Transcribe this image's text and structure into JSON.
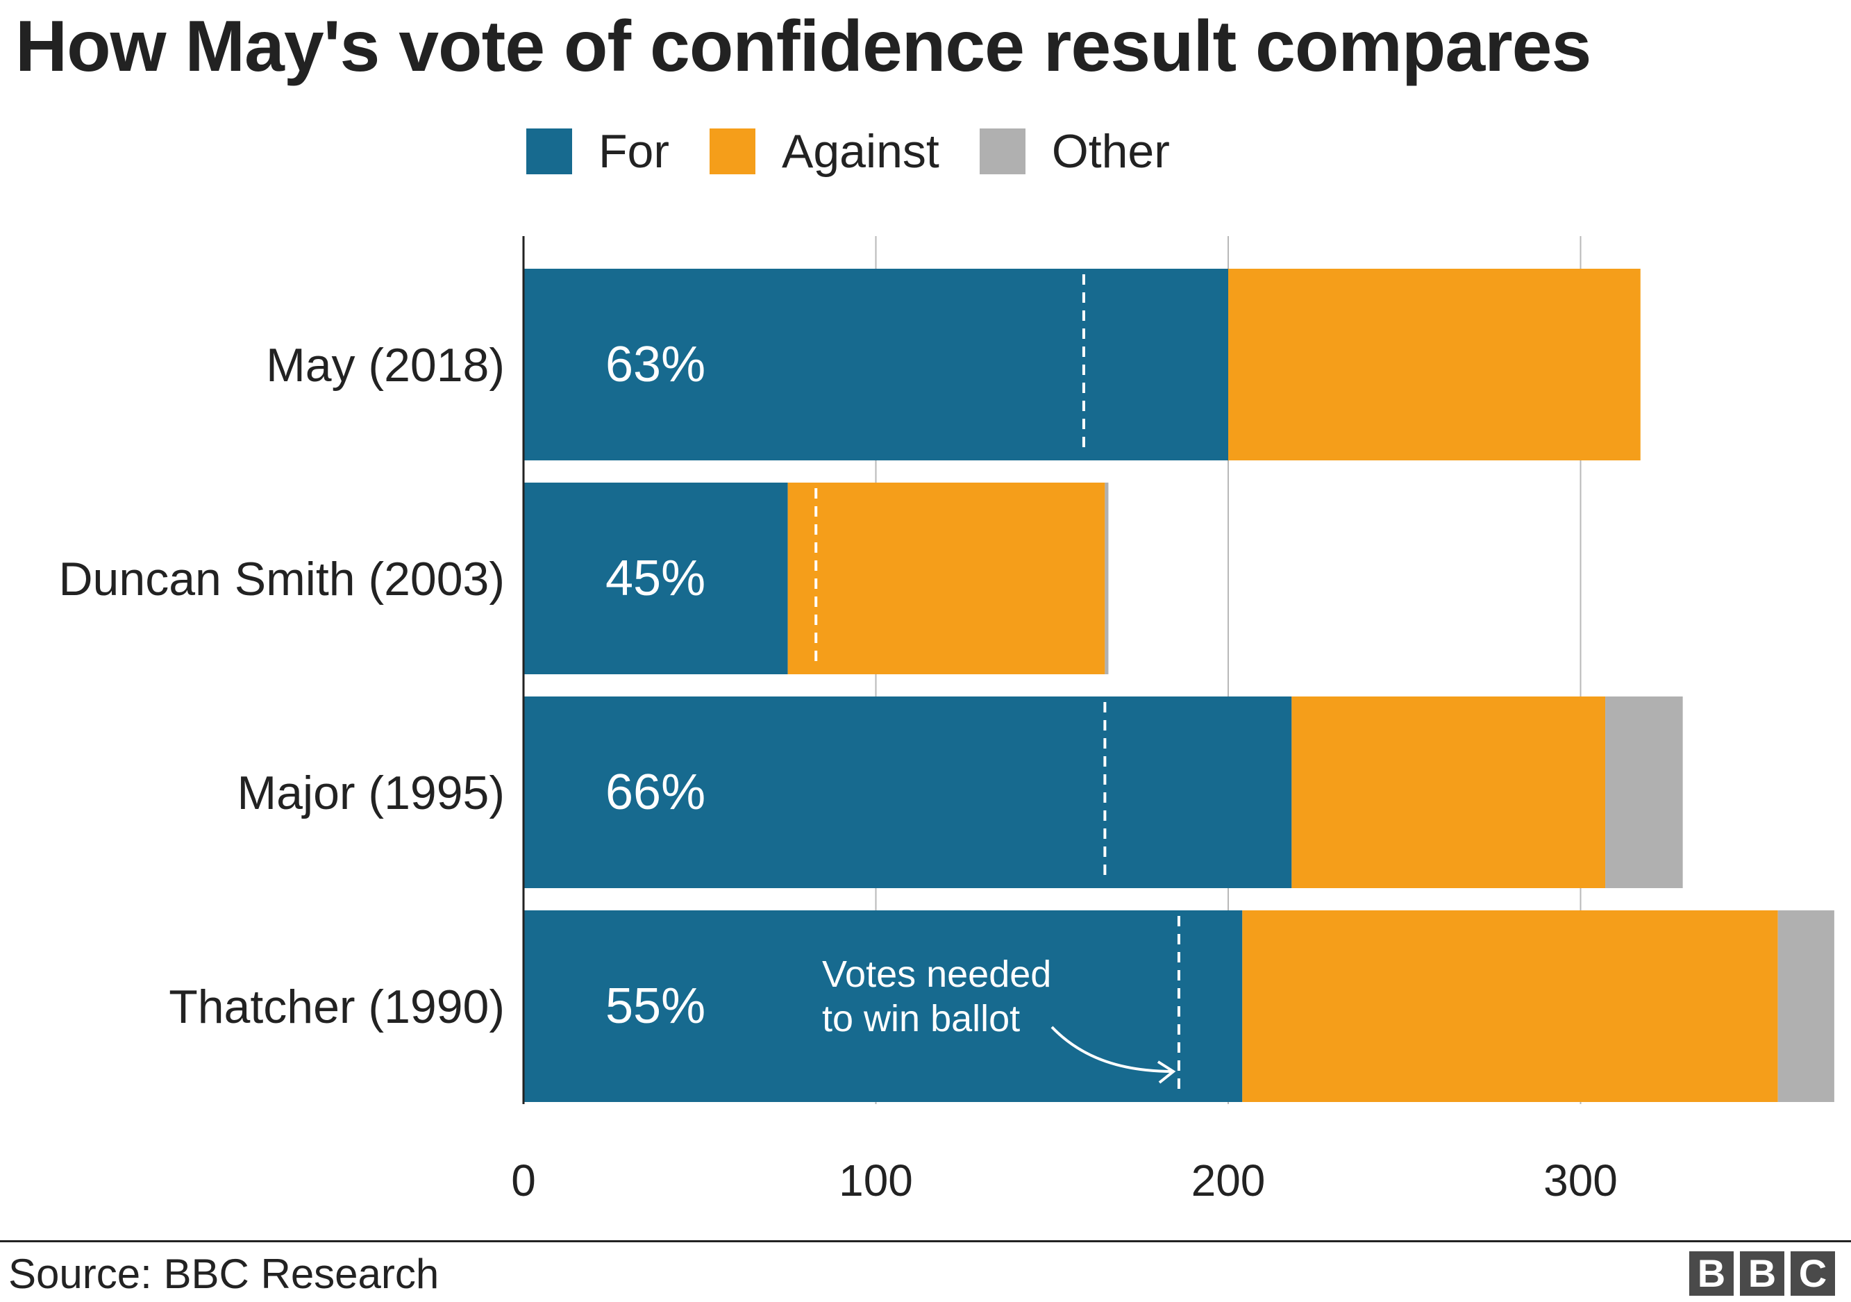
{
  "title": "How May's vote of confidence result compares",
  "legend": {
    "items": [
      {
        "label": "For",
        "color": "#176a8f"
      },
      {
        "label": "Against",
        "color": "#f59e1a"
      },
      {
        "label": "Other",
        "color": "#b0b0b0"
      }
    ]
  },
  "chart_data": {
    "type": "bar",
    "orientation": "horizontal",
    "stacked": true,
    "categories": [
      "May (2018)",
      "Duncan Smith (2003)",
      "Major (1995)",
      "Thatcher (1990)"
    ],
    "series": [
      {
        "name": "For",
        "color": "#176a8f",
        "values": [
          200,
          75,
          218,
          204
        ]
      },
      {
        "name": "Against",
        "color": "#f59e1a",
        "values": [
          117,
          90,
          89,
          152
        ]
      },
      {
        "name": "Other",
        "color": "#b0b0b0",
        "values": [
          0,
          1,
          22,
          16
        ]
      }
    ],
    "for_percent_labels": [
      "63%",
      "45%",
      "66%",
      "55%"
    ],
    "votes_needed": [
      159,
      83,
      165,
      186
    ],
    "xlim": [
      0,
      372
    ],
    "xticks": [
      0,
      100,
      200,
      300
    ],
    "grid": true,
    "legend_position": "top",
    "annotation": {
      "text_lines": [
        "Votes needed",
        "to win ballot"
      ],
      "category": "Thatcher (1990)"
    }
  },
  "footer": {
    "source": "Source: BBC Research",
    "logo_letters": [
      "B",
      "B",
      "C"
    ]
  }
}
